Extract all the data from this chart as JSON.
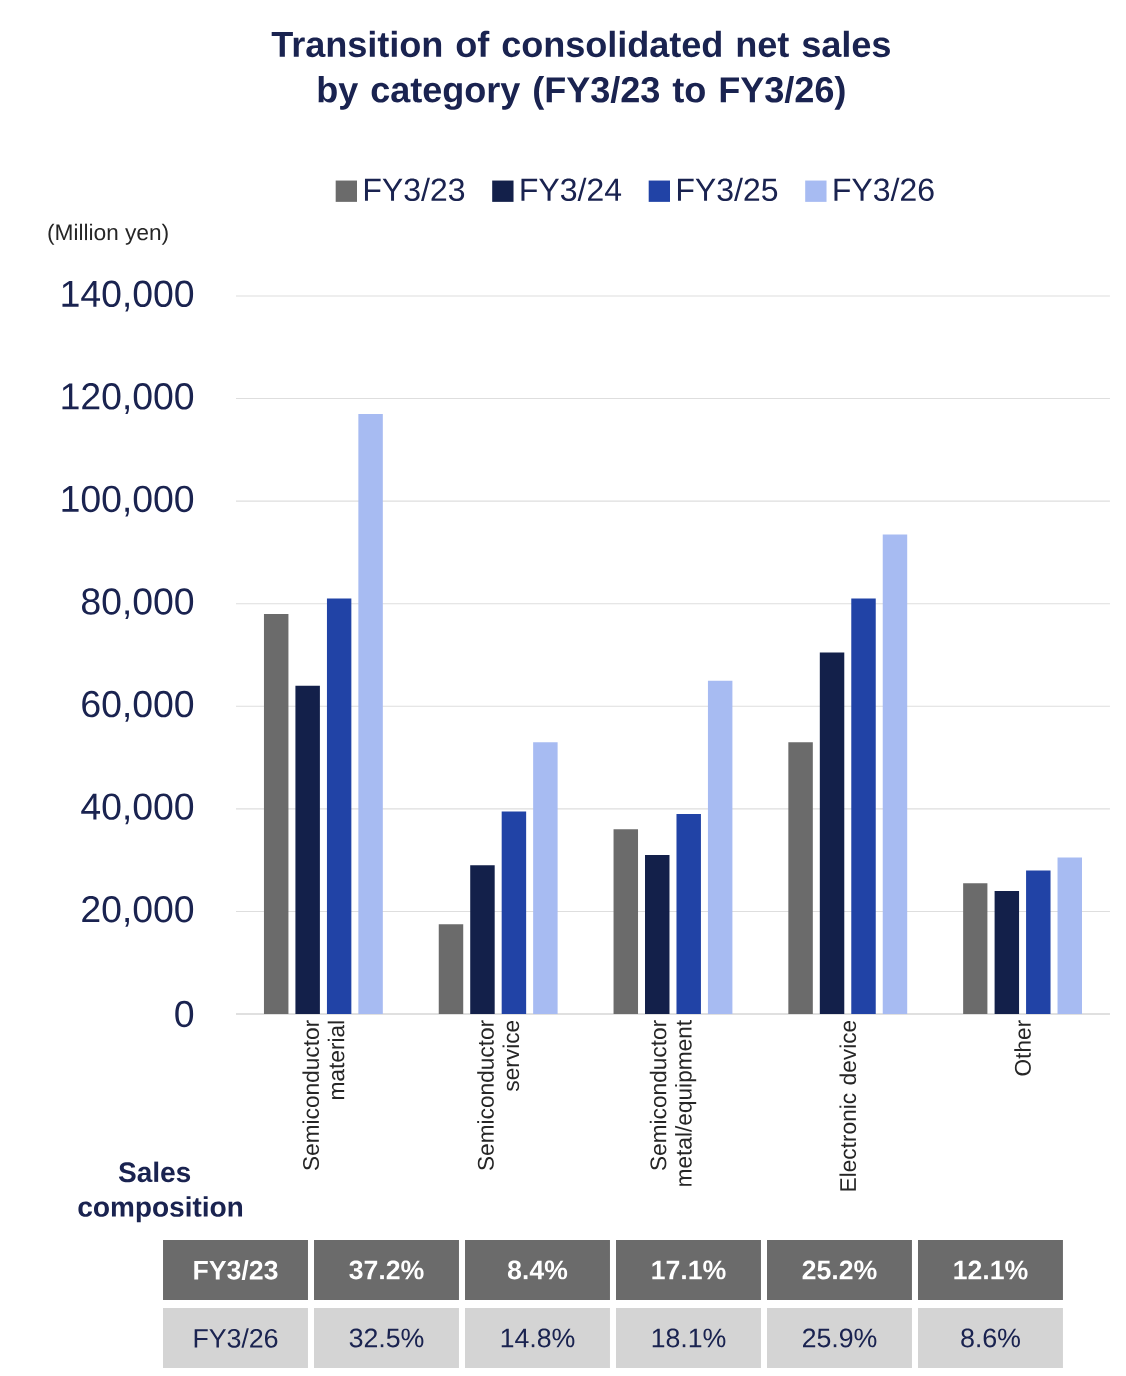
{
  "chart_data": [
    {
      "type": "bar",
      "title": "Transition of consolidated net sales by category (FY3/23 to FY3/26)",
      "ylabel": "(Million yen)",
      "categories": [
        "Semiconductor material",
        "Semiconductor service",
        "Semiconductor metal/equipment",
        "Electronic device",
        "Other"
      ],
      "series": [
        {
          "name": "FY3/23",
          "color": "#6b6b6b",
          "values": [
            78000,
            17500,
            36000,
            53000,
            25500
          ]
        },
        {
          "name": "FY3/24",
          "color": "#13204a",
          "values": [
            64000,
            29000,
            31000,
            70500,
            24000
          ]
        },
        {
          "name": "FY3/25",
          "color": "#2143a6",
          "values": [
            81000,
            39500,
            39000,
            81000,
            28000
          ]
        },
        {
          "name": "FY3/26",
          "color": "#a7bbf2",
          "values": [
            117000,
            53000,
            65000,
            93500,
            30500
          ]
        }
      ],
      "ylim": [
        0,
        140000
      ],
      "yticks": [
        0,
        {
          "value": 20000,
          "label": "20,000"
        },
        {
          "value": 40000,
          "label": "40,000"
        },
        {
          "value": 60000,
          "label": "60,000"
        },
        {
          "value": 80000,
          "label": "80,000"
        },
        {
          "value": 100000,
          "label": "100,000"
        },
        {
          "value": 120000,
          "label": "120,000"
        },
        {
          "value": 140000,
          "label": "140,000"
        }
      ],
      "grid": "y",
      "legend": "top"
    },
    {
      "type": "other",
      "title": "Sales composition",
      "annotations": [
        "FY3/23",
        "37.2%",
        "8.4%",
        "17.1%",
        "25.2%",
        "12.1%",
        "FY3/26",
        "32.5%",
        "14.8%",
        "18.1%",
        "25.9%",
        "8.6%"
      ],
      "colors": [
        "#6b6b6b",
        "#d4d4d4"
      ]
    }
  ]
}
